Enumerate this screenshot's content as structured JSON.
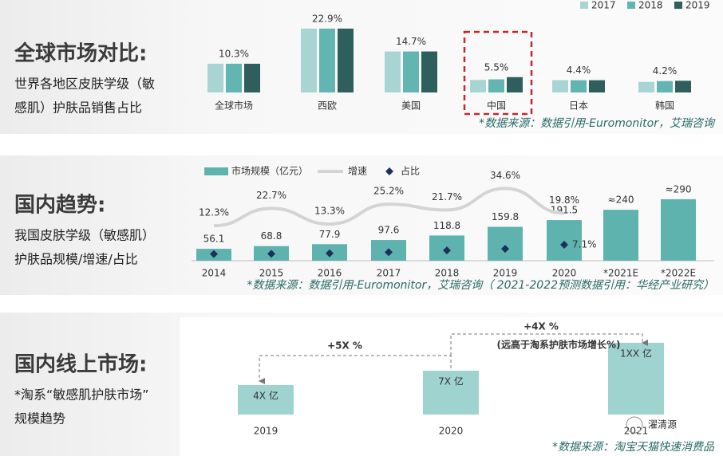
{
  "panels": [
    {
      "title": "全球市场对比:",
      "subtitle_lines": [
        "世界各地区皮肤学级（敏",
        "感肌）护肤品销售占比"
      ]
    },
    {
      "title": "国内趋势:",
      "subtitle_lines": [
        "我国皮肤学级（敏感肌）",
        "护肤品规模/增速/占比"
      ]
    },
    {
      "title": "国内线上市场:",
      "subtitle_lines": [
        "*淘系“敏感肌护肤市场”",
        "规模趋势"
      ]
    }
  ],
  "chart_data": [
    {
      "type": "grouped-bar",
      "categories": [
        "全球市场",
        "西欧",
        "美国",
        "中国",
        "日本",
        "韩国"
      ],
      "series": [
        {
          "name": "2017",
          "color": "#a8d5d3",
          "values": [
            10.3,
            22.9,
            14.7,
            4.5,
            4.4,
            3.8
          ]
        },
        {
          "name": "2018",
          "color": "#62b5b0",
          "values": [
            10.3,
            22.9,
            14.7,
            4.7,
            4.4,
            4.1
          ]
        },
        {
          "name": "2019",
          "color": "#2f5f5c",
          "values": [
            10.3,
            22.9,
            14.7,
            5.5,
            4.4,
            4.2
          ],
          "value_labels": [
            "10.3%",
            "22.9%",
            "14.7%",
            "5.5%",
            "4.4%",
            "4.2%"
          ]
        }
      ],
      "highlight": "中国",
      "source": "*数据来源：数据引用-Euromonitor，艾瑞咨询"
    },
    {
      "type": "bar-line",
      "categories": [
        "2014",
        "2015",
        "2016",
        "2017",
        "2018",
        "2019",
        "2020",
        "*2021E",
        "*2022E"
      ],
      "series": [
        {
          "name": "市场规模（亿元）",
          "color": "#5fb3ae",
          "values": [
            56.1,
            68.8,
            77.9,
            97.6,
            118.8,
            159.8,
            191.5,
            240,
            290
          ],
          "value_labels": [
            "56.1",
            "68.8",
            "77.9",
            "97.6",
            "118.8",
            "159.8",
            "191.5",
            "≈240",
            "≈290"
          ]
        },
        {
          "name": "增速",
          "color": "#d4d4d4",
          "values": [
            12.3,
            22.7,
            13.3,
            25.2,
            21.7,
            34.6,
            19.8,
            null,
            null
          ],
          "value_labels": [
            "12.3%",
            "22.7%",
            "13.3%",
            "25.2%",
            "21.7%",
            "34.6%",
            "19.8%",
            null,
            null
          ]
        },
        {
          "name": "占比",
          "color": "#1f2f5e",
          "values": [
            3.5,
            3.6,
            3.8,
            4.2,
            4.9,
            5.5,
            7.1,
            null,
            null
          ],
          "value_labels": [
            null,
            null,
            null,
            null,
            null,
            null,
            "7.1%",
            null,
            null
          ]
        }
      ],
      "source": "*数据来源：数据引用-Euromonitor，艾瑞咨询（  2021-2022预测数据引用：华经产业研究）"
    }
  ],
  "online_market": {
    "years": [
      "2019",
      "2020",
      "2021"
    ],
    "labels": [
      "4X 亿",
      "7X 亿",
      "1XX 亿"
    ],
    "growth": [
      "+5X %",
      "+4X %"
    ],
    "note": "(远高于淘系护肤市场增长%)",
    "source": "*数据来源：淘宝天猫快速消费品",
    "watermark": "濯清源"
  }
}
